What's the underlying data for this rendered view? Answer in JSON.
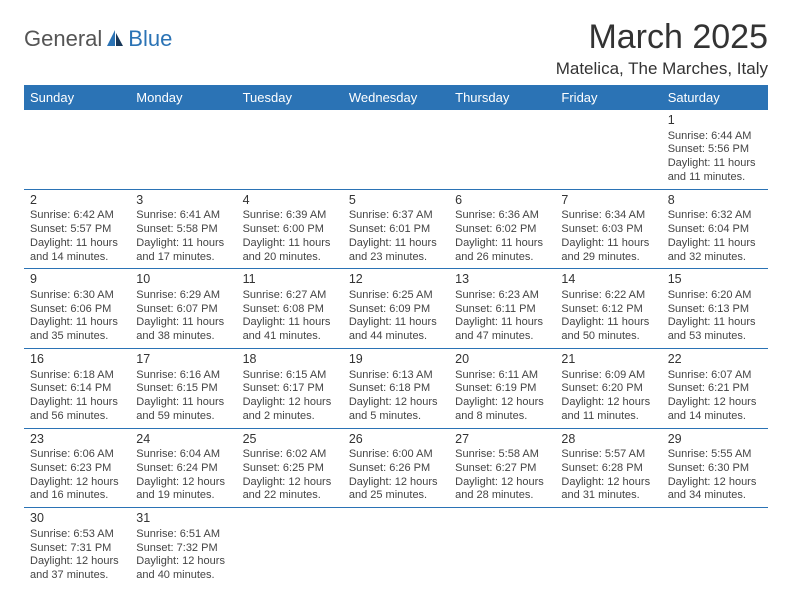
{
  "logo": {
    "general": "General",
    "blue": "Blue"
  },
  "title": "March 2025",
  "location": "Matelica, The Marches, Italy",
  "colors": {
    "header_bg": "#2b73b5",
    "header_text": "#ffffff",
    "cell_border": "#2b73b5",
    "text": "#444444",
    "title": "#333333"
  },
  "days_of_week": [
    "Sunday",
    "Monday",
    "Tuesday",
    "Wednesday",
    "Thursday",
    "Friday",
    "Saturday"
  ],
  "weeks": [
    [
      null,
      null,
      null,
      null,
      null,
      null,
      {
        "n": "1",
        "sr": "Sunrise: 6:44 AM",
        "ss": "Sunset: 5:56 PM",
        "dl": "Daylight: 11 hours and 11 minutes."
      }
    ],
    [
      {
        "n": "2",
        "sr": "Sunrise: 6:42 AM",
        "ss": "Sunset: 5:57 PM",
        "dl": "Daylight: 11 hours and 14 minutes."
      },
      {
        "n": "3",
        "sr": "Sunrise: 6:41 AM",
        "ss": "Sunset: 5:58 PM",
        "dl": "Daylight: 11 hours and 17 minutes."
      },
      {
        "n": "4",
        "sr": "Sunrise: 6:39 AM",
        "ss": "Sunset: 6:00 PM",
        "dl": "Daylight: 11 hours and 20 minutes."
      },
      {
        "n": "5",
        "sr": "Sunrise: 6:37 AM",
        "ss": "Sunset: 6:01 PM",
        "dl": "Daylight: 11 hours and 23 minutes."
      },
      {
        "n": "6",
        "sr": "Sunrise: 6:36 AM",
        "ss": "Sunset: 6:02 PM",
        "dl": "Daylight: 11 hours and 26 minutes."
      },
      {
        "n": "7",
        "sr": "Sunrise: 6:34 AM",
        "ss": "Sunset: 6:03 PM",
        "dl": "Daylight: 11 hours and 29 minutes."
      },
      {
        "n": "8",
        "sr": "Sunrise: 6:32 AM",
        "ss": "Sunset: 6:04 PM",
        "dl": "Daylight: 11 hours and 32 minutes."
      }
    ],
    [
      {
        "n": "9",
        "sr": "Sunrise: 6:30 AM",
        "ss": "Sunset: 6:06 PM",
        "dl": "Daylight: 11 hours and 35 minutes."
      },
      {
        "n": "10",
        "sr": "Sunrise: 6:29 AM",
        "ss": "Sunset: 6:07 PM",
        "dl": "Daylight: 11 hours and 38 minutes."
      },
      {
        "n": "11",
        "sr": "Sunrise: 6:27 AM",
        "ss": "Sunset: 6:08 PM",
        "dl": "Daylight: 11 hours and 41 minutes."
      },
      {
        "n": "12",
        "sr": "Sunrise: 6:25 AM",
        "ss": "Sunset: 6:09 PM",
        "dl": "Daylight: 11 hours and 44 minutes."
      },
      {
        "n": "13",
        "sr": "Sunrise: 6:23 AM",
        "ss": "Sunset: 6:11 PM",
        "dl": "Daylight: 11 hours and 47 minutes."
      },
      {
        "n": "14",
        "sr": "Sunrise: 6:22 AM",
        "ss": "Sunset: 6:12 PM",
        "dl": "Daylight: 11 hours and 50 minutes."
      },
      {
        "n": "15",
        "sr": "Sunrise: 6:20 AM",
        "ss": "Sunset: 6:13 PM",
        "dl": "Daylight: 11 hours and 53 minutes."
      }
    ],
    [
      {
        "n": "16",
        "sr": "Sunrise: 6:18 AM",
        "ss": "Sunset: 6:14 PM",
        "dl": "Daylight: 11 hours and 56 minutes."
      },
      {
        "n": "17",
        "sr": "Sunrise: 6:16 AM",
        "ss": "Sunset: 6:15 PM",
        "dl": "Daylight: 11 hours and 59 minutes."
      },
      {
        "n": "18",
        "sr": "Sunrise: 6:15 AM",
        "ss": "Sunset: 6:17 PM",
        "dl": "Daylight: 12 hours and 2 minutes."
      },
      {
        "n": "19",
        "sr": "Sunrise: 6:13 AM",
        "ss": "Sunset: 6:18 PM",
        "dl": "Daylight: 12 hours and 5 minutes."
      },
      {
        "n": "20",
        "sr": "Sunrise: 6:11 AM",
        "ss": "Sunset: 6:19 PM",
        "dl": "Daylight: 12 hours and 8 minutes."
      },
      {
        "n": "21",
        "sr": "Sunrise: 6:09 AM",
        "ss": "Sunset: 6:20 PM",
        "dl": "Daylight: 12 hours and 11 minutes."
      },
      {
        "n": "22",
        "sr": "Sunrise: 6:07 AM",
        "ss": "Sunset: 6:21 PM",
        "dl": "Daylight: 12 hours and 14 minutes."
      }
    ],
    [
      {
        "n": "23",
        "sr": "Sunrise: 6:06 AM",
        "ss": "Sunset: 6:23 PM",
        "dl": "Daylight: 12 hours and 16 minutes."
      },
      {
        "n": "24",
        "sr": "Sunrise: 6:04 AM",
        "ss": "Sunset: 6:24 PM",
        "dl": "Daylight: 12 hours and 19 minutes."
      },
      {
        "n": "25",
        "sr": "Sunrise: 6:02 AM",
        "ss": "Sunset: 6:25 PM",
        "dl": "Daylight: 12 hours and 22 minutes."
      },
      {
        "n": "26",
        "sr": "Sunrise: 6:00 AM",
        "ss": "Sunset: 6:26 PM",
        "dl": "Daylight: 12 hours and 25 minutes."
      },
      {
        "n": "27",
        "sr": "Sunrise: 5:58 AM",
        "ss": "Sunset: 6:27 PM",
        "dl": "Daylight: 12 hours and 28 minutes."
      },
      {
        "n": "28",
        "sr": "Sunrise: 5:57 AM",
        "ss": "Sunset: 6:28 PM",
        "dl": "Daylight: 12 hours and 31 minutes."
      },
      {
        "n": "29",
        "sr": "Sunrise: 5:55 AM",
        "ss": "Sunset: 6:30 PM",
        "dl": "Daylight: 12 hours and 34 minutes."
      }
    ],
    [
      {
        "n": "30",
        "sr": "Sunrise: 6:53 AM",
        "ss": "Sunset: 7:31 PM",
        "dl": "Daylight: 12 hours and 37 minutes."
      },
      {
        "n": "31",
        "sr": "Sunrise: 6:51 AM",
        "ss": "Sunset: 7:32 PM",
        "dl": "Daylight: 12 hours and 40 minutes."
      },
      null,
      null,
      null,
      null,
      null
    ]
  ]
}
